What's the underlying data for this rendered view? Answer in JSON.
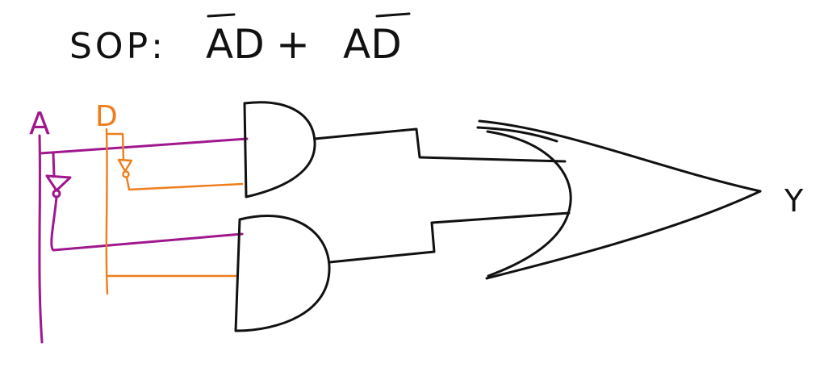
{
  "title": {
    "prefix": "SOP:",
    "term1": "AD",
    "plus": "+",
    "term2": "AD"
  },
  "inputs": {
    "a_label": "A",
    "d_label": "D"
  },
  "output": {
    "label": "Y"
  },
  "colors": {
    "ink": "#111111",
    "wire_a": "#a1178e",
    "wire_d": "#ef7d1a"
  }
}
